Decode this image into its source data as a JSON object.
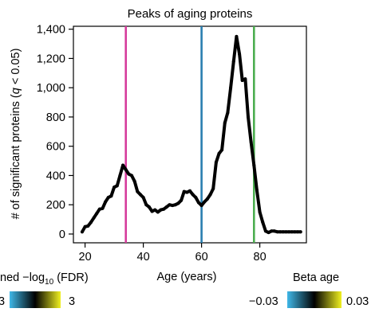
{
  "chart_data": {
    "type": "line",
    "title": "Peaks of aging proteins",
    "xlabel": "Age (years)",
    "ylabel": "# of significant proteins (",
    "ylabel_q": "q",
    "ylabel_tail": " < 0.05)",
    "xlim": [
      16,
      96
    ],
    "ylim": [
      -60,
      1420
    ],
    "x_ticks": [
      20,
      40,
      60,
      80
    ],
    "x_tick_labels": [
      "20",
      "40",
      "60",
      "80"
    ],
    "y_ticks": [
      0,
      200,
      400,
      600,
      800,
      1000,
      1200,
      1400
    ],
    "y_tick_labels": [
      "0",
      "200",
      "400",
      "600",
      "800",
      "1,000",
      "1,200",
      "1,400"
    ],
    "series": [
      {
        "color": "#000000",
        "x": [
          19,
          20,
          21,
          22,
          23,
          24,
          25,
          26,
          27,
          28,
          29,
          30,
          31,
          32,
          33,
          34,
          35,
          36,
          37,
          38,
          39,
          40,
          41,
          42,
          43,
          44,
          45,
          46,
          47,
          48,
          49,
          50,
          51,
          52,
          53,
          54,
          55,
          56,
          57,
          58,
          59,
          60,
          61,
          62,
          63,
          64,
          65,
          66,
          67,
          68,
          69,
          70,
          71,
          72,
          73,
          74,
          75,
          76,
          77,
          78,
          79,
          80,
          81,
          82,
          83,
          84,
          85,
          86,
          87,
          88,
          89,
          90,
          91,
          92,
          93,
          94
        ],
        "values": [
          15,
          50,
          55,
          80,
          110,
          140,
          170,
          175,
          220,
          250,
          260,
          320,
          330,
          400,
          470,
          440,
          410,
          400,
          360,
          290,
          270,
          250,
          200,
          185,
          155,
          165,
          150,
          165,
          170,
          185,
          200,
          195,
          200,
          210,
          230,
          290,
          285,
          295,
          270,
          250,
          215,
          195,
          220,
          240,
          270,
          310,
          490,
          550,
          575,
          760,
          830,
          1000,
          1180,
          1350,
          1230,
          1050,
          1060,
          800,
          630,
          470,
          300,
          150,
          80,
          20,
          10,
          20,
          20,
          15,
          15,
          15,
          15,
          15,
          15,
          15,
          15,
          15
        ]
      }
    ],
    "vlines": [
      {
        "x": 34,
        "color": "#d63c9c"
      },
      {
        "x": 60,
        "color": "#2a7fb0"
      },
      {
        "x": 78,
        "color": "#4cae50"
      }
    ],
    "legends": [
      {
        "title_pre": "ned −log",
        "title_sub": "10",
        "title_post": " (FDR)",
        "min_label": "3",
        "max_label": "3"
      },
      {
        "title": "Beta age",
        "min_label": "−0.03",
        "max_label": "0.03"
      }
    ],
    "colorbar_stops": [
      "#40b8e8",
      "#000000",
      "#f0f020"
    ],
    "grid": false
  }
}
